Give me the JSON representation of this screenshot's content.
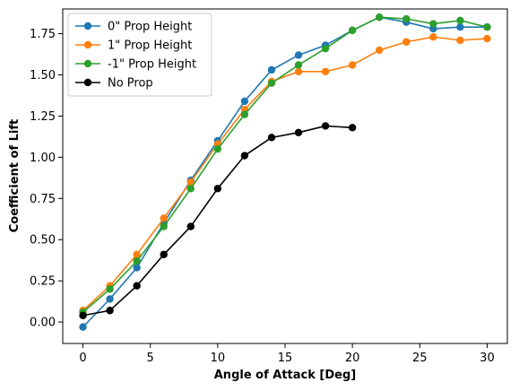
{
  "chart_data": {
    "type": "line",
    "title": "",
    "xlabel": "Angle of Attack [Deg]",
    "ylabel": "Coefficient of Lift",
    "xlim": [
      -1.5,
      31.5
    ],
    "ylim": [
      -0.13,
      1.9
    ],
    "xticks": [
      0,
      5,
      10,
      15,
      20,
      25,
      30
    ],
    "yticks": [
      0.0,
      0.25,
      0.5,
      0.75,
      1.0,
      1.25,
      1.5,
      1.75
    ],
    "xtick_labels": [
      "0",
      "5",
      "10",
      "15",
      "20",
      "25",
      "30"
    ],
    "ytick_labels": [
      "0.00",
      "0.25",
      "0.50",
      "0.75",
      "1.00",
      "1.25",
      "1.50",
      "1.75"
    ],
    "grid": false,
    "legend_position": "top-left",
    "series": [
      {
        "name": "0\" Prop Height",
        "color": "#1f77b4",
        "x": [
          0,
          2,
          4,
          6,
          8,
          10,
          12,
          14,
          16,
          18,
          20,
          22,
          24,
          26,
          28,
          30
        ],
        "y": [
          -0.03,
          0.14,
          0.33,
          0.6,
          0.86,
          1.1,
          1.34,
          1.53,
          1.62,
          1.68,
          1.77,
          1.85,
          1.82,
          1.78,
          1.79,
          1.79
        ]
      },
      {
        "name": "1\" Prop Height",
        "color": "#ff7f0e",
        "x": [
          0,
          2,
          4,
          6,
          8,
          10,
          12,
          14,
          16,
          18,
          20,
          22,
          24,
          26,
          28,
          30
        ],
        "y": [
          0.07,
          0.22,
          0.41,
          0.63,
          0.85,
          1.08,
          1.29,
          1.46,
          1.52,
          1.52,
          1.56,
          1.65,
          1.7,
          1.73,
          1.71,
          1.72
        ]
      },
      {
        "name": "-1\" Prop Height",
        "color": "#2ca02c",
        "x": [
          0,
          2,
          4,
          6,
          8,
          10,
          12,
          14,
          16,
          18,
          20,
          22,
          24,
          26,
          28,
          30
        ],
        "y": [
          0.06,
          0.2,
          0.37,
          0.58,
          0.81,
          1.05,
          1.26,
          1.45,
          1.56,
          1.66,
          1.77,
          1.85,
          1.84,
          1.81,
          1.83,
          1.79
        ]
      },
      {
        "name": "No Prop",
        "color": "#000000",
        "x": [
          0,
          2,
          4,
          6,
          8,
          10,
          12,
          14,
          16,
          18,
          20
        ],
        "y": [
          0.04,
          0.07,
          0.22,
          0.41,
          0.58,
          0.81,
          1.01,
          1.12,
          1.15,
          1.19,
          1.18
        ]
      }
    ]
  }
}
